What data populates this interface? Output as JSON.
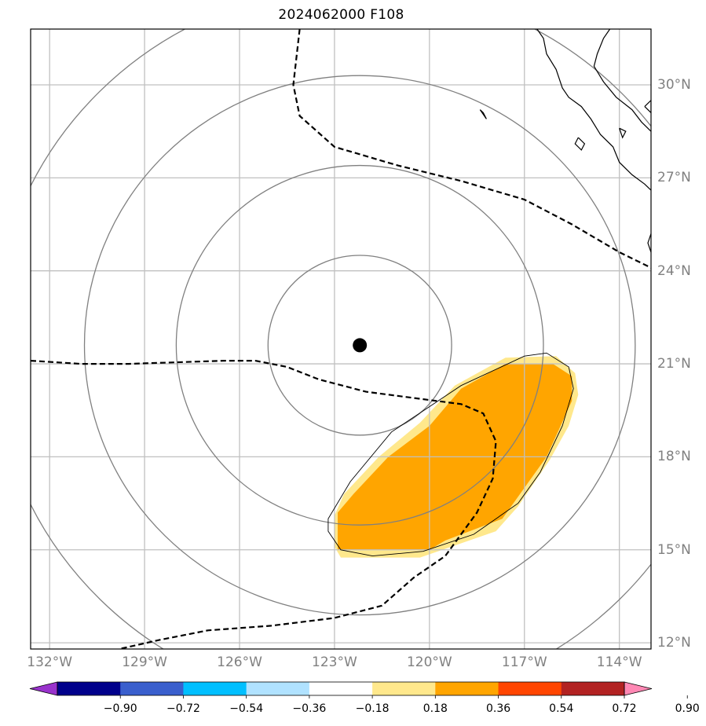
{
  "title": "2024062000 F108",
  "map": {
    "projection": "lat-lon",
    "lon_range": [
      -132.6,
      -113.0
    ],
    "lat_range": [
      11.8,
      31.8
    ],
    "grid": true,
    "lon_ticks": [
      {
        "value": -132,
        "label": "132°W"
      },
      {
        "value": -129,
        "label": "129°W"
      },
      {
        "value": -126,
        "label": "126°W"
      },
      {
        "value": -123,
        "label": "123°W"
      },
      {
        "value": -120,
        "label": "120°W"
      },
      {
        "value": -117,
        "label": "117°W"
      },
      {
        "value": -114,
        "label": "114°W"
      }
    ],
    "lat_ticks": [
      {
        "value": 30,
        "label": "30°N"
      },
      {
        "value": 27,
        "label": "27°N"
      },
      {
        "value": 24,
        "label": "24°N"
      },
      {
        "value": 21,
        "label": "21°N"
      },
      {
        "value": 18,
        "label": "18°N"
      },
      {
        "value": 15,
        "label": "15°N"
      },
      {
        "value": 12,
        "label": "12°N"
      }
    ],
    "storm_center": {
      "lon": -122.2,
      "lat": 21.6
    },
    "range_rings_deg": [
      2.9,
      5.8,
      8.7,
      11.6
    ],
    "colors": {
      "grid": "#c0c0c0",
      "ring": "#808080",
      "coast": "#000000",
      "dashed": "#000000"
    }
  },
  "colorbar": {
    "levels": [
      -0.9,
      -0.72,
      -0.54,
      -0.36,
      -0.18,
      0.18,
      0.36,
      0.54,
      0.72,
      0.9
    ],
    "labels": [
      "−0.90",
      "−0.72",
      "−0.54",
      "−0.36",
      "−0.18",
      "0.18",
      "0.36",
      "0.54",
      "0.72",
      "0.90"
    ],
    "colors": [
      "#9932cc",
      "#00008b",
      "#3a5fcd",
      "#00bfff",
      "#b0e2ff",
      "#ffffff",
      "#ffe88c",
      "#ffa500",
      "#ff4500",
      "#b22222",
      "#ff88b4"
    ]
  },
  "fields": {
    "band_036_054": {
      "value_range": [
        0.36,
        0.54
      ],
      "color": "#ffa500",
      "outline": [
        [
          -122.9,
          15.0
        ],
        [
          -120.0,
          15.0
        ],
        [
          -119.5,
          15.3
        ],
        [
          -117.7,
          16.0
        ],
        [
          -116.3,
          18.0
        ],
        [
          -115.9,
          18.9
        ],
        [
          -115.5,
          19.8
        ],
        [
          -115.5,
          20.6
        ],
        [
          -116.1,
          21.0
        ],
        [
          -117.6,
          21.0
        ],
        [
          -119.0,
          20.2
        ],
        [
          -120.0,
          19.0
        ],
        [
          -121.3,
          18.0
        ],
        [
          -122.4,
          16.8
        ],
        [
          -122.9,
          16.2
        ]
      ]
    },
    "band_018_036": {
      "value_range": [
        0.18,
        0.36
      ],
      "color": "#ffe88c",
      "outline": [
        [
          -123.0,
          15.1
        ],
        [
          -122.8,
          14.75
        ],
        [
          -120.3,
          14.75
        ],
        [
          -117.9,
          15.6
        ],
        [
          -117.2,
          16.4
        ],
        [
          -116.2,
          17.9
        ],
        [
          -115.6,
          19.0
        ],
        [
          -115.3,
          20.0
        ],
        [
          -115.4,
          20.7
        ],
        [
          -116.0,
          21.25
        ],
        [
          -117.6,
          21.2
        ],
        [
          -119.2,
          20.3
        ],
        [
          -120.3,
          19.1
        ],
        [
          -121.6,
          18.0
        ],
        [
          -122.7,
          16.8
        ],
        [
          -123.0,
          16.1
        ]
      ]
    },
    "contour_018": [
      [
        -123.2,
        15.6
      ],
      [
        -122.8,
        15.0
      ],
      [
        -121.8,
        14.8
      ],
      [
        -120.2,
        14.95
      ],
      [
        -118.6,
        15.5
      ],
      [
        -117.2,
        16.5
      ],
      [
        -116.5,
        17.5
      ],
      [
        -115.8,
        19.0
      ],
      [
        -115.45,
        20.2
      ],
      [
        -115.6,
        20.9
      ],
      [
        -116.3,
        21.35
      ],
      [
        -117.0,
        21.25
      ],
      [
        -119.0,
        20.3
      ],
      [
        -121.2,
        18.8
      ],
      [
        -122.5,
        17.2
      ],
      [
        -123.2,
        16.0
      ],
      [
        -123.2,
        15.6
      ]
    ],
    "dashed_contours": [
      [
        [
          -132.6,
          21.1
        ],
        [
          -131.0,
          21.0
        ],
        [
          -129.5,
          21.0
        ],
        [
          -128.0,
          21.05
        ],
        [
          -126.5,
          21.1
        ],
        [
          -125.5,
          21.1
        ],
        [
          -124.5,
          20.9
        ],
        [
          -123.5,
          20.5
        ],
        [
          -122.0,
          20.1
        ],
        [
          -120.5,
          19.9
        ],
        [
          -119.0,
          19.7
        ],
        [
          -118.3,
          19.4
        ],
        [
          -117.9,
          18.5
        ],
        [
          -118.0,
          17.3
        ],
        [
          -118.5,
          16.2
        ],
        [
          -119.5,
          14.8
        ],
        [
          -120.5,
          14.1
        ],
        [
          -121.5,
          13.2
        ],
        [
          -123.0,
          12.8
        ],
        [
          -125.0,
          12.55
        ],
        [
          -127.0,
          12.4
        ],
        [
          -128.5,
          12.1
        ],
        [
          -129.8,
          11.8
        ]
      ],
      [
        [
          -124.1,
          31.8
        ],
        [
          -124.3,
          30.0
        ],
        [
          -124.1,
          29.0
        ],
        [
          -123.0,
          28.0
        ],
        [
          -121.0,
          27.4
        ],
        [
          -119.0,
          26.9
        ],
        [
          -117.0,
          26.3
        ],
        [
          -115.5,
          25.5
        ],
        [
          -114.0,
          24.6
        ],
        [
          -113.0,
          24.1
        ]
      ]
    ],
    "coastline": [
      [
        [
          -116.6,
          31.8
        ],
        [
          -116.4,
          31.5
        ],
        [
          -116.3,
          31.0
        ],
        [
          -116.0,
          30.5
        ],
        [
          -115.8,
          29.9
        ],
        [
          -115.6,
          29.6
        ],
        [
          -115.2,
          29.3
        ],
        [
          -114.9,
          28.9
        ],
        [
          -114.6,
          28.4
        ],
        [
          -114.2,
          28.0
        ],
        [
          -114.0,
          27.5
        ],
        [
          -113.6,
          27.1
        ],
        [
          -113.2,
          26.8
        ],
        [
          -113.0,
          26.6
        ]
      ],
      [
        [
          -114.3,
          31.8
        ],
        [
          -114.5,
          31.5
        ],
        [
          -114.7,
          31.0
        ],
        [
          -114.8,
          30.6
        ],
        [
          -114.5,
          30.1
        ],
        [
          -114.1,
          29.6
        ],
        [
          -113.6,
          29.2
        ],
        [
          -113.3,
          28.8
        ],
        [
          -113.0,
          28.5
        ]
      ],
      [
        [
          -113.2,
          29.3
        ],
        [
          -113.0,
          29.1
        ],
        [
          -113.0,
          29.5
        ],
        [
          -113.2,
          29.3
        ]
      ],
      [
        [
          -113.0,
          25.2
        ],
        [
          -113.1,
          24.9
        ],
        [
          -113.0,
          24.6
        ]
      ],
      [
        [
          -118.4,
          29.2
        ],
        [
          -118.2,
          28.9
        ],
        [
          -118.3,
          29.1
        ],
        [
          -118.4,
          29.2
        ]
      ],
      [
        [
          -115.3,
          28.3
        ],
        [
          -115.1,
          28.1
        ],
        [
          -115.2,
          27.9
        ],
        [
          -115.4,
          28.1
        ],
        [
          -115.3,
          28.3
        ]
      ],
      [
        [
          -114.0,
          28.6
        ],
        [
          -113.9,
          28.3
        ],
        [
          -113.8,
          28.5
        ],
        [
          -114.0,
          28.6
        ]
      ]
    ]
  }
}
